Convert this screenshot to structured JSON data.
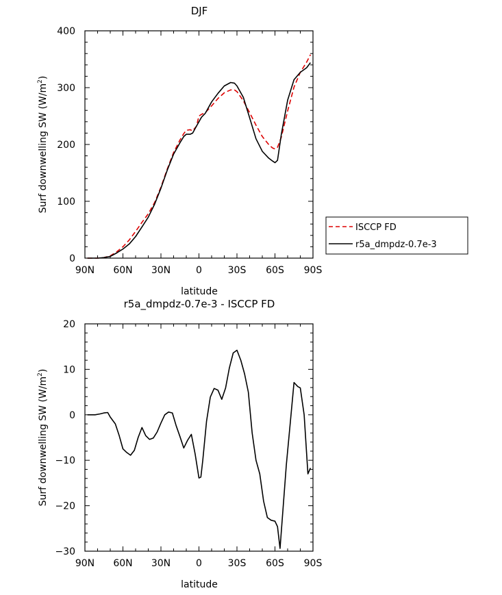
{
  "chart_data": [
    {
      "type": "line",
      "title": "DJF",
      "xlabel": "latitude",
      "ylabel": "Surf downwelling SW (W/m²)",
      "ylabel_main": "Surf downwelling SW (W/m",
      "ylabel_sup": "2",
      "ylabel_close": ")",
      "xlim": [
        90,
        -90
      ],
      "ylim": [
        0,
        400
      ],
      "xticks": [
        90,
        60,
        30,
        0,
        -30,
        -60,
        -90
      ],
      "xtick_labels": [
        "90N",
        "60N",
        "30N",
        "0",
        "30S",
        "60S",
        "90S"
      ],
      "yticks": [
        0,
        100,
        200,
        300,
        400
      ],
      "ytick_labels": [
        "0",
        "100",
        "200",
        "300",
        "400"
      ],
      "legend_position": "right",
      "series": [
        {
          "name": "ISCCP FD",
          "color": "#dd0000",
          "dash": "dashed",
          "x": [
            88,
            80,
            75,
            70,
            65,
            60,
            55,
            50,
            45,
            40,
            35,
            30,
            25,
            20,
            15,
            12,
            10,
            7,
            5,
            2,
            0,
            -2,
            -5,
            -10,
            -15,
            -20,
            -25,
            -28,
            -30,
            -35,
            -40,
            -45,
            -50,
            -55,
            -58,
            -60,
            -62,
            -65,
            -70,
            -75,
            -80,
            -85,
            -88
          ],
          "y": [
            0,
            0,
            1,
            4,
            11,
            20,
            32,
            47,
            63,
            78,
            98,
            125,
            157,
            186,
            208,
            219,
            225,
            226,
            224,
            232,
            250,
            253,
            256,
            268,
            281,
            291,
            296,
            296,
            293,
            277,
            256,
            234,
            214,
            200,
            194,
            192,
            195,
            213,
            259,
            301,
            327,
            345,
            358
          ]
        },
        {
          "name": "r5a_dmpdz-0.7e-3",
          "color": "#000000",
          "dash": "solid",
          "x": [
            88,
            80,
            75,
            70,
            65,
            60,
            55,
            50,
            45,
            40,
            35,
            30,
            25,
            20,
            15,
            12,
            10,
            7,
            5,
            2,
            0,
            -2,
            -5,
            -10,
            -15,
            -20,
            -25,
            -28,
            -30,
            -35,
            -40,
            -45,
            -50,
            -55,
            -58,
            -60,
            -62,
            -65,
            -70,
            -75,
            -80,
            -85,
            -88
          ],
          "y": [
            0,
            0,
            1,
            3,
            9,
            16,
            25,
            38,
            55,
            72,
            95,
            123,
            155,
            183,
            203,
            214,
            218,
            218,
            220,
            232,
            240,
            248,
            255,
            275,
            290,
            303,
            309,
            308,
            303,
            283,
            247,
            210,
            188,
            176,
            171,
            168,
            172,
            218,
            278,
            314,
            327,
            335,
            344
          ]
        }
      ]
    },
    {
      "type": "line",
      "title": "r5a_dmpdz-0.7e-3 - ISCCP FD",
      "xlabel": "latitude",
      "ylabel": "Surf downwelling SW (W/m²)",
      "ylabel_main": "Surf downwelling SW (W/m",
      "ylabel_sup": "2",
      "ylabel_close": ")",
      "xlim": [
        90,
        -90
      ],
      "ylim": [
        -30,
        20
      ],
      "xticks": [
        90,
        60,
        30,
        0,
        -30,
        -60,
        -90
      ],
      "xtick_labels": [
        "90N",
        "60N",
        "30N",
        "0",
        "30S",
        "60S",
        "90S"
      ],
      "yticks": [
        -30,
        -20,
        -10,
        0,
        10,
        20
      ],
      "ytick_labels": [
        "−30",
        "−20",
        "−10",
        "0",
        "10",
        "20"
      ],
      "series": [
        {
          "color": "#000000",
          "dash": "solid",
          "x": [
            88,
            82,
            78,
            75,
            72,
            70,
            66,
            63,
            60,
            57,
            54,
            51,
            48,
            45,
            42,
            39,
            36,
            33,
            30,
            27,
            24,
            21,
            18,
            15,
            12,
            9,
            6,
            3,
            0,
            -1.5,
            -3,
            -6,
            -9,
            -12,
            -15,
            -18,
            -21,
            -24,
            -27,
            -30,
            -33,
            -36,
            -39,
            -42,
            -45,
            -48,
            -51,
            -54,
            -57,
            -60,
            -62,
            -64,
            -66,
            -69,
            -72,
            -75,
            -78,
            -80,
            -83,
            -86,
            -88
          ],
          "y": [
            0,
            0,
            0.2,
            0.4,
            0.5,
            -0.5,
            -2,
            -4.5,
            -7.5,
            -8.3,
            -8.9,
            -7.8,
            -5,
            -2.8,
            -4.6,
            -5.4,
            -5.1,
            -3.8,
            -1.8,
            0,
            0.6,
            0.4,
            -2.4,
            -4.8,
            -7.3,
            -5.6,
            -4.3,
            -8.6,
            -13.9,
            -13.7,
            -10,
            -1.4,
            3.9,
            5.8,
            5.4,
            3.4,
            5.9,
            10.3,
            13.6,
            14.2,
            12,
            9,
            5,
            -4,
            -10,
            -13,
            -19,
            -22.6,
            -23.2,
            -23.4,
            -24.6,
            -29.4,
            -22,
            -11,
            -2,
            7.1,
            6.2,
            5.9,
            0,
            -13,
            -11.7
          ]
        }
      ]
    }
  ]
}
